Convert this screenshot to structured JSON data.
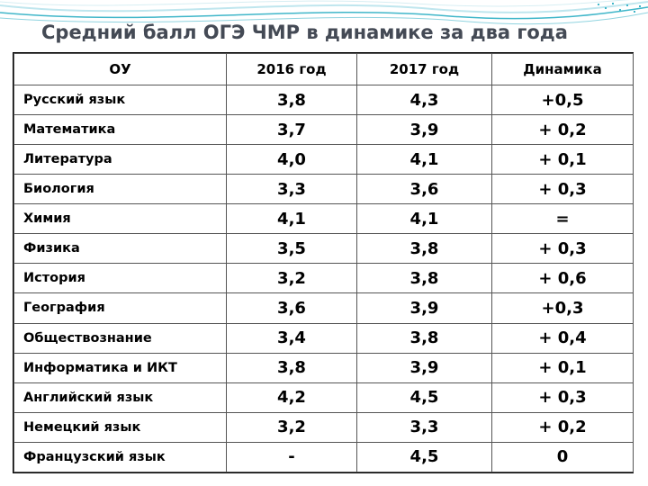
{
  "title": "Средний балл ОГЭ ЧМР в динамике за два года",
  "headers": [
    "ОУ",
    "2016 год",
    "2017 год",
    "Динамика"
  ],
  "rows": [
    {
      "subject": "Русский язык",
      "y2016": "3,8",
      "y2017": "4,3",
      "delta": "+0,5"
    },
    {
      "subject": "Математика",
      "y2016": "3,7",
      "y2017": "3,9",
      "delta": "+ 0,2"
    },
    {
      "subject": "Литература",
      "y2016": "4,0",
      "y2017": "4,1",
      "delta": "+ 0,1"
    },
    {
      "subject": "Биология",
      "y2016": "3,3",
      "y2017": "3,6",
      "delta": "+ 0,3"
    },
    {
      "subject": "Химия",
      "y2016": "4,1",
      "y2017": "4,1",
      "delta": "="
    },
    {
      "subject": "Физика",
      "y2016": "3,5",
      "y2017": "3,8",
      "delta": "+ 0,3"
    },
    {
      "subject": "История",
      "y2016": "3,2",
      "y2017": "3,8",
      "delta": "+ 0,6"
    },
    {
      "subject": "География",
      "y2016": "3,6",
      "y2017": "3,9",
      "delta": "+0,3"
    },
    {
      "subject": "Обществознание",
      "y2016": "3,4",
      "y2017": "3,8",
      "delta": "+ 0,4"
    },
    {
      "subject": "Информатика и ИКТ",
      "y2016": "3,8",
      "y2017": "3,9",
      "delta": "+ 0,1"
    },
    {
      "subject": "Английский язык",
      "y2016": "4,2",
      "y2017": "4,5",
      "delta": "+ 0,3"
    },
    {
      "subject": "Немецкий язык",
      "y2016": "3,2",
      "y2017": "3,3",
      "delta": "+ 0,2"
    },
    {
      "subject": "Французский язык",
      "y2016": "-",
      "y2017": "4,5",
      "delta": "0"
    }
  ],
  "colors": {
    "title": "#444a55",
    "decoration_teal": "#3fb6c9",
    "decoration_light": "#bfe6ee"
  }
}
